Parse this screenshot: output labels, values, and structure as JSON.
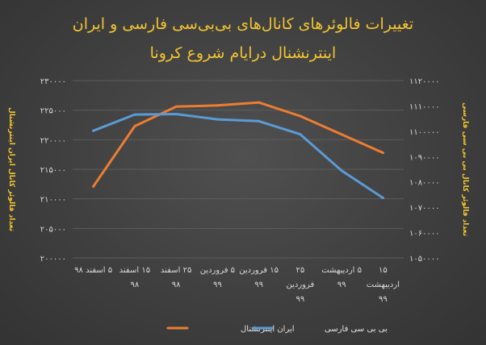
{
  "chart_data": {
    "type": "line",
    "title": [
      "تغییرات فالوئرهای کانال‌های بی‌بی‌سی فارسی و ایران",
      "اینترنشنال درایام شروع کرونا"
    ],
    "categories": [
      [
        "۵ اسفند ۹۸"
      ],
      [
        "۱۵ اسفند",
        "۹۸"
      ],
      [
        "۲۵ اسفند",
        "۹۸"
      ],
      [
        "۵ فروردین",
        "۹۹"
      ],
      [
        "۱۵ فروردین",
        "۹۹"
      ],
      [
        "۲۵",
        "فروردین",
        "۹۹"
      ],
      [
        "۵ اردیبهشت",
        "۹۹"
      ],
      [
        "۱۵",
        "اردیبهشت",
        "۹۹"
      ]
    ],
    "y_left": {
      "label": "تعداد فالوئر کانال ایران اینترنشنال",
      "ylim": [
        200000,
        230000
      ],
      "ticks": [
        200000,
        205000,
        210000,
        215000,
        220000,
        225000,
        230000
      ],
      "tick_labels": [
        "۲۰۰۰۰۰",
        "۲۰۵۰۰۰",
        "۲۱۰۰۰۰",
        "۲۱۵۰۰۰",
        "۲۲۰۰۰۰",
        "۲۲۵۰۰۰",
        "۲۳۰۰۰۰"
      ]
    },
    "y_right": {
      "label": "تعداد فالوئر کانال بی بی سی فارسی",
      "ylim": [
        1050000,
        1120000
      ],
      "ticks": [
        1050000,
        1060000,
        1070000,
        1080000,
        1090000,
        1100000,
        1110000,
        1120000
      ],
      "tick_labels": [
        "۱۰۵۰۰۰۰",
        "۱۰۶۰۰۰۰",
        "۱۰۷۰۰۰۰",
        "۱۰۸۰۰۰۰",
        "۱۰۹۰۰۰۰",
        "۱۱۰۰۰۰۰",
        "۱۱۱۰۰۰۰",
        "۱۱۲۰۰۰۰"
      ]
    },
    "series": [
      {
        "name": "ایران اینترنشنال",
        "axis": "left",
        "color": "#ed7d31",
        "values": [
          212100,
          222300,
          225600,
          225800,
          226300,
          224000,
          220900,
          217800
        ]
      },
      {
        "name": "بی بی سی فارسی",
        "axis": "right",
        "color": "#5b9bd5",
        "values": [
          1100200,
          1106600,
          1106800,
          1104700,
          1104000,
          1098800,
          1084500,
          1073700
        ]
      }
    ],
    "grid": true,
    "legend": "bottom"
  }
}
